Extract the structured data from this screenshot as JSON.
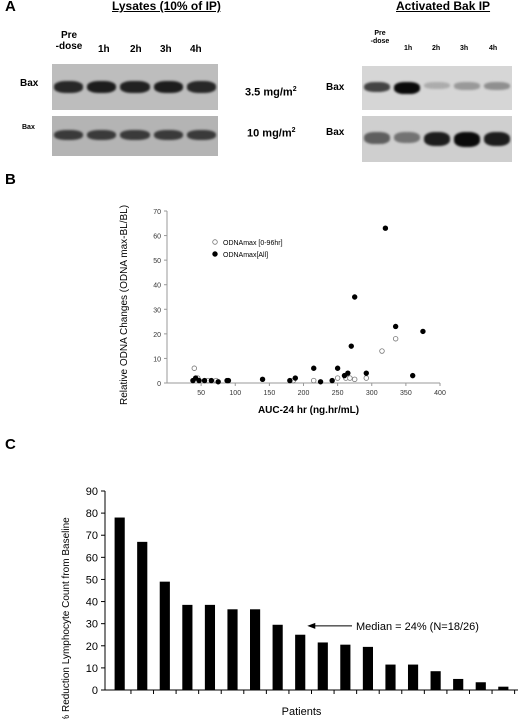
{
  "panel_a": {
    "letter": "A",
    "left_title": "Lysates (10% of IP)",
    "right_title": "Activated Bak IP",
    "left_lanes": [
      {
        "line1": "Pre",
        "line2": "-dose"
      },
      {
        "line1": "1h",
        "line2": ""
      },
      {
        "line1": "2h",
        "line2": ""
      },
      {
        "line1": "3h",
        "line2": ""
      },
      {
        "line1": "4h",
        "line2": ""
      }
    ],
    "right_lanes": [
      {
        "line1": "Pre",
        "line2": "-dose"
      },
      {
        "line1": "1h",
        "line2": ""
      },
      {
        "line1": "2h",
        "line2": ""
      },
      {
        "line1": "3h",
        "line2": ""
      },
      {
        "line1": "4h",
        "line2": ""
      }
    ],
    "row_labels": [
      "Bax",
      "Bax"
    ],
    "right_row_labels": [
      "Bax",
      "Bax"
    ],
    "doses": [
      {
        "value": "3.5 mg/m",
        "sup": "2"
      },
      {
        "value": "10 mg/m",
        "sup": "2"
      }
    ],
    "band_intensity": {
      "left_top": [
        0.85,
        0.9,
        0.88,
        0.9,
        0.85
      ],
      "left_bottom": [
        0.75,
        0.75,
        0.75,
        0.75,
        0.75
      ],
      "right_top": [
        0.7,
        1.0,
        0.15,
        0.25,
        0.3
      ],
      "right_bottom": [
        0.55,
        0.45,
        0.9,
        1.0,
        0.9
      ]
    }
  },
  "panel_b": {
    "letter": "B"
  },
  "panel_c": {
    "letter": "C"
  },
  "chart_data": [
    {
      "type": "scatter",
      "title": "",
      "xlabel": "AUC-24 hr (ng.hr/mL)",
      "ylabel": "Relative ODNA Changes (ODNA max-BL/BL)",
      "xlim": [
        0,
        400
      ],
      "ylim": [
        0,
        70
      ],
      "xticks": [
        50,
        100,
        150,
        200,
        250,
        300,
        350,
        400
      ],
      "yticks": [
        0,
        10,
        20,
        30,
        40,
        50,
        60,
        70
      ],
      "legend_position": "top-left",
      "grid": false,
      "series": [
        {
          "name": "ODNAmax [0-96hr]",
          "marker": "open-circle",
          "points": [
            [
              40,
              6
            ],
            [
              45,
              2
            ],
            [
              60,
              1
            ],
            [
              72,
              1
            ],
            [
              185,
              1
            ],
            [
              215,
              1
            ],
            [
              250,
              2
            ],
            [
              262,
              2
            ],
            [
              268,
              2
            ],
            [
              275,
              1.5
            ],
            [
              292,
              2
            ],
            [
              315,
              13
            ],
            [
              335,
              18
            ]
          ]
        },
        {
          "name": "ODNAmax[All]",
          "marker": "filled-circle",
          "points": [
            [
              38,
              1
            ],
            [
              42,
              2
            ],
            [
              47,
              1
            ],
            [
              55,
              1
            ],
            [
              65,
              1
            ],
            [
              75,
              0.5
            ],
            [
              88,
              1
            ],
            [
              90,
              1
            ],
            [
              140,
              1.5
            ],
            [
              180,
              1
            ],
            [
              188,
              2
            ],
            [
              215,
              6
            ],
            [
              225,
              0.5
            ],
            [
              242,
              1
            ],
            [
              250,
              6
            ],
            [
              260,
              3
            ],
            [
              265,
              4
            ],
            [
              270,
              15
            ],
            [
              275,
              35
            ],
            [
              292,
              4
            ],
            [
              320,
              63
            ],
            [
              335,
              23
            ],
            [
              360,
              3
            ],
            [
              375,
              21
            ]
          ]
        }
      ]
    },
    {
      "type": "bar",
      "title": "",
      "xlabel": "Patients",
      "ylabel": "% Reduction Lymphocyte Count from Baseline",
      "ylim": [
        0,
        90
      ],
      "yticks": [
        0,
        10,
        20,
        30,
        40,
        50,
        60,
        70,
        80,
        90
      ],
      "grid": false,
      "values": [
        78,
        67,
        49,
        38.5,
        38.5,
        36.5,
        36.5,
        29.5,
        25,
        21.5,
        20.5,
        19.5,
        11.5,
        11.5,
        8.5,
        5,
        3.5,
        1.5
      ],
      "annotation": "Median = 24% (N=18/26)",
      "annotation_bar_index": 8
    }
  ]
}
